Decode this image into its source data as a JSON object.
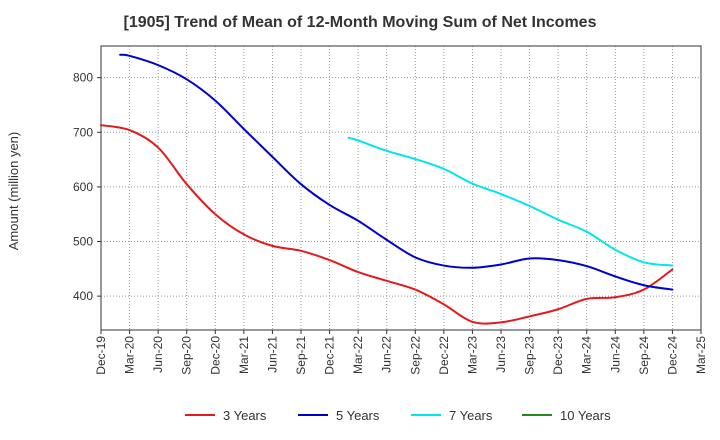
{
  "chart_data": {
    "type": "line",
    "title": "[1905]  Trend of Mean of 12-Month Moving Sum of Net Incomes",
    "xlabel": "",
    "ylabel": "Amount (million yen)",
    "ylim": [
      338,
      858
    ],
    "yticks": [
      400,
      500,
      600,
      700,
      800
    ],
    "x_categories": [
      "Dec-19",
      "Mar-20",
      "Jun-20",
      "Sep-20",
      "Dec-20",
      "Mar-21",
      "Jun-21",
      "Sep-21",
      "Dec-21",
      "Mar-22",
      "Jun-22",
      "Sep-22",
      "Dec-22",
      "Mar-23",
      "Jun-23",
      "Sep-23",
      "Dec-23",
      "Mar-24",
      "Jun-24",
      "Sep-24",
      "Dec-24",
      "Mar-25"
    ],
    "grid": true,
    "legend_position": "bottom",
    "series": [
      {
        "name": "3 Years",
        "color": "#e31a1c",
        "points": [
          [
            0,
            713
          ],
          [
            1,
            704
          ],
          [
            2,
            672
          ],
          [
            3,
            605
          ],
          [
            4,
            550
          ],
          [
            5,
            513
          ],
          [
            6,
            492
          ],
          [
            7,
            483
          ],
          [
            8,
            466
          ],
          [
            9,
            444
          ],
          [
            10,
            428
          ],
          [
            11,
            412
          ],
          [
            12,
            385
          ],
          [
            13,
            353
          ],
          [
            14,
            352
          ],
          [
            15,
            363
          ],
          [
            16,
            376
          ],
          [
            17,
            395
          ],
          [
            18,
            398
          ],
          [
            19,
            412
          ],
          [
            20,
            449
          ]
        ]
      },
      {
        "name": "5 Years",
        "color": "#0000cc",
        "points": [
          [
            0.67,
            842
          ],
          [
            1,
            840
          ],
          [
            2,
            823
          ],
          [
            3,
            797
          ],
          [
            4,
            758
          ],
          [
            5,
            706
          ],
          [
            6,
            655
          ],
          [
            7,
            605
          ],
          [
            8,
            567
          ],
          [
            9,
            538
          ],
          [
            10,
            503
          ],
          [
            11,
            471
          ],
          [
            12,
            456
          ],
          [
            13,
            452
          ],
          [
            14,
            458
          ],
          [
            15,
            469
          ],
          [
            16,
            466
          ],
          [
            17,
            455
          ],
          [
            18,
            436
          ],
          [
            19,
            420
          ],
          [
            20,
            412
          ]
        ]
      },
      {
        "name": "7 Years",
        "color": "#00e5ee",
        "points": [
          [
            8.67,
            690
          ],
          [
            9,
            685
          ],
          [
            10,
            666
          ],
          [
            11,
            651
          ],
          [
            12,
            633
          ],
          [
            13,
            606
          ],
          [
            14,
            587
          ],
          [
            15,
            565
          ],
          [
            16,
            540
          ],
          [
            17,
            518
          ],
          [
            18,
            485
          ],
          [
            19,
            462
          ],
          [
            20,
            456
          ]
        ]
      },
      {
        "name": "10 Years",
        "color": "#228b22",
        "points": []
      }
    ]
  }
}
